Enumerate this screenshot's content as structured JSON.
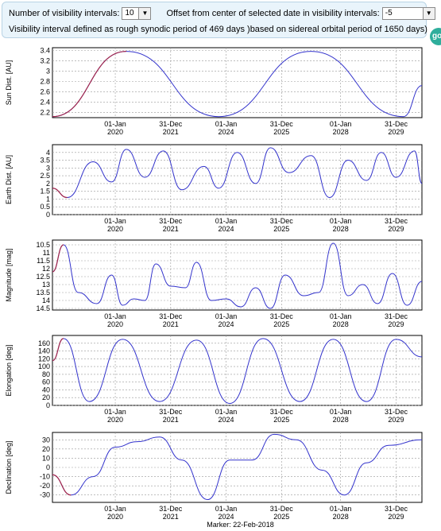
{
  "controls": {
    "intervals_label": "Number of visibility intervals:",
    "intervals_value": "10",
    "offset_label": "Offset from center of selected date in visibility intervals:",
    "offset_value": "-5",
    "interval_desc": "Visibility interval defined as rough synodic period of 469 days )based on sidereal orbital period of 1650 days)"
  },
  "go_button": {
    "label": "go"
  },
  "marker": {
    "label": "Marker: 22-Feb-2018"
  },
  "colors": {
    "line": "#3333cc",
    "highlight": "#a3264a",
    "panel_bg": "#e9f4fb"
  },
  "chart_data": [
    {
      "type": "line",
      "ylabel": "Sun Dist. [AU]",
      "ylim": [
        2.1,
        3.45
      ],
      "yticks": [
        "2.2",
        "2.4",
        "2.6",
        "2.8",
        "3",
        "3.2",
        "3.4"
      ],
      "xticks": [
        [
          "01-Jan",
          "2020"
        ],
        [
          "31-Dec",
          "2021"
        ],
        [
          "01-Jan",
          "2024"
        ],
        [
          "31-Dec",
          "2025"
        ],
        [
          "01-Jan",
          "2028"
        ],
        [
          "31-Dec",
          "2029"
        ]
      ],
      "series": [
        {
          "x": [
            0,
            0.2,
            0.45,
            0.7,
            0.95,
            1
          ],
          "y": [
            2.12,
            3.38,
            2.12,
            3.38,
            2.12,
            2.72
          ]
        }
      ]
    },
    {
      "type": "line",
      "ylabel": "Earth Dist. [AU]",
      "ylim": [
        0,
        4.5
      ],
      "yticks": [
        "0",
        "0.5",
        "1",
        "1.5",
        "2",
        "2.5",
        "3",
        "3.5",
        "4"
      ],
      "xticks": [
        [
          "01-Jan",
          "2020"
        ],
        [
          "31-Dec",
          "2021"
        ],
        [
          "01-Jan",
          "2024"
        ],
        [
          "31-Dec",
          "2025"
        ],
        [
          "01-Jan",
          "2028"
        ],
        [
          "31-Dec",
          "2029"
        ]
      ],
      "series": [
        {
          "x": [
            0,
            0.04,
            0.11,
            0.16,
            0.2,
            0.25,
            0.3,
            0.35,
            0.41,
            0.45,
            0.5,
            0.55,
            0.59,
            0.64,
            0.7,
            0.75,
            0.8,
            0.85,
            0.89,
            0.93,
            0.98,
            1
          ],
          "y": [
            1.7,
            1.1,
            3.4,
            2.1,
            4.2,
            2.4,
            4.1,
            1.6,
            3.1,
            1.7,
            4.0,
            2.0,
            4.3,
            2.7,
            3.8,
            1.1,
            3.5,
            2.2,
            4.0,
            2.4,
            4.1,
            2.0
          ]
        }
      ]
    },
    {
      "type": "line",
      "ylabel": "Magnitude [mag]",
      "ylim": [
        14.6,
        10.2
      ],
      "yticks": [
        "10.5",
        "11",
        "11.5",
        "12",
        "12.5",
        "13",
        "13.5",
        "14",
        "14.5"
      ],
      "xticks": [
        [
          "01-Jan",
          "2020"
        ],
        [
          "31-Dec",
          "2021"
        ],
        [
          "01-Jan",
          "2024"
        ],
        [
          "31-Dec",
          "2025"
        ],
        [
          "01-Jan",
          "2028"
        ],
        [
          "31-Dec",
          "2029"
        ]
      ],
      "series": [
        {
          "x": [
            0,
            0.03,
            0.07,
            0.12,
            0.16,
            0.19,
            0.22,
            0.25,
            0.28,
            0.32,
            0.36,
            0.39,
            0.43,
            0.47,
            0.51,
            0.55,
            0.59,
            0.63,
            0.68,
            0.72,
            0.76,
            0.8,
            0.84,
            0.88,
            0.92,
            0.96,
            1
          ],
          "y": [
            12.2,
            10.5,
            13.5,
            14.2,
            12.4,
            14.3,
            13.9,
            14.0,
            11.7,
            13.1,
            13.2,
            11.6,
            14.0,
            13.9,
            14.4,
            13.2,
            14.5,
            12.4,
            13.7,
            13.5,
            10.4,
            13.7,
            13.0,
            14.2,
            12.3,
            14.3,
            12.8
          ]
        }
      ]
    },
    {
      "type": "line",
      "ylabel": "Elongation [deg]",
      "ylim": [
        0,
        180
      ],
      "yticks": [
        "0",
        "20",
        "40",
        "60",
        "80",
        "100",
        "120",
        "140",
        "160"
      ],
      "xticks": [
        [
          "01-Jan",
          "2020"
        ],
        [
          "31-Dec",
          "2021"
        ],
        [
          "01-Jan",
          "2024"
        ],
        [
          "31-Dec",
          "2025"
        ],
        [
          "01-Jan",
          "2028"
        ],
        [
          "31-Dec",
          "2029"
        ]
      ],
      "series": [
        {
          "x": [
            0,
            0.03,
            0.1,
            0.19,
            0.29,
            0.39,
            0.48,
            0.57,
            0.67,
            0.76,
            0.85,
            0.93,
            1
          ],
          "y": [
            115,
            172,
            10,
            170,
            10,
            168,
            5,
            172,
            10,
            170,
            10,
            170,
            125
          ]
        }
      ]
    },
    {
      "type": "line",
      "ylabel": "Declination [deg]",
      "ylim": [
        -38,
        38
      ],
      "yticks": [
        "-30",
        "-20",
        "-10",
        "0",
        "10",
        "20",
        "30"
      ],
      "xticks": [
        [
          "01-Jan",
          "2020"
        ],
        [
          "31-Dec",
          "2021"
        ],
        [
          "01-Jan",
          "2024"
        ],
        [
          "31-Dec",
          "2025"
        ],
        [
          "01-Jan",
          "2028"
        ],
        [
          "31-Dec",
          "2029"
        ]
      ],
      "series": [
        {
          "x": [
            0,
            0.05,
            0.11,
            0.17,
            0.23,
            0.29,
            0.35,
            0.42,
            0.48,
            0.54,
            0.6,
            0.66,
            0.73,
            0.79,
            0.85,
            0.91,
            1
          ],
          "y": [
            -8,
            -30,
            -10,
            22,
            28,
            33,
            8,
            -35,
            8,
            8,
            36,
            30,
            -3,
            -30,
            5,
            24,
            30
          ]
        }
      ]
    }
  ]
}
